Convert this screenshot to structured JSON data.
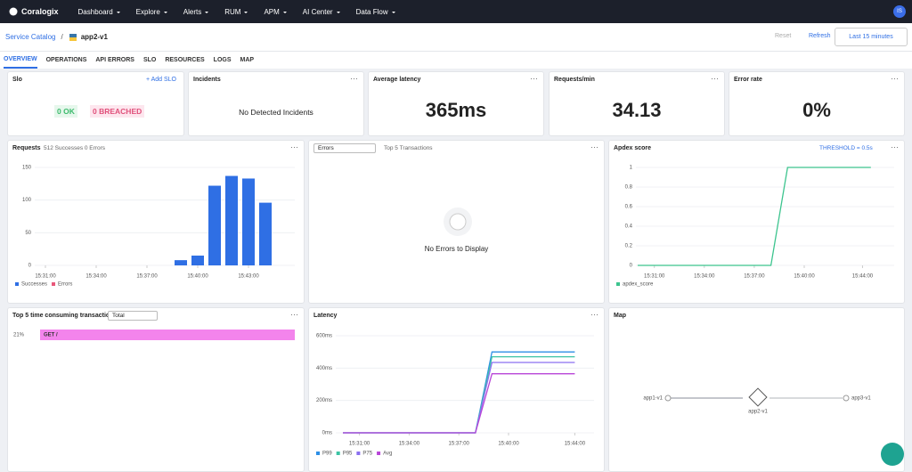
{
  "nav": {
    "brand": "Coralogix",
    "items": [
      "Dashboard",
      "Explore",
      "Alerts",
      "RUM",
      "APM",
      "AI Center",
      "Data Flow"
    ],
    "avatar": "IS"
  },
  "header": {
    "breadcrumb": "Service Catalog",
    "separator": "/",
    "service": "app2-v1",
    "reset": "Reset",
    "refresh": "Refresh",
    "time_range": "Last 15 minutes"
  },
  "tabs": [
    "OVERVIEW",
    "OPERATIONS",
    "API ERRORS",
    "SLO",
    "RESOURCES",
    "LOGS",
    "MAP"
  ],
  "slo": {
    "title": "Slo",
    "add": "+ Add SLO",
    "ok": "0 OK",
    "breached": "0 BREACHED"
  },
  "incidents": {
    "title": "Incidents",
    "message": "No Detected Incidents"
  },
  "latency_card": {
    "title": "Average latency",
    "value": "365ms"
  },
  "requests_card": {
    "title": "Requests/min",
    "value": "34.13"
  },
  "error_card": {
    "title": "Error rate",
    "value": "0%"
  },
  "requests_chart": {
    "type": "bar",
    "title": "Requests",
    "subtitle": "512 Successes 0 Errors",
    "categories": [
      null,
      null,
      null,
      null,
      null,
      null,
      null,
      null,
      null,
      null,
      null,
      null,
      null,
      null
    ],
    "series": [
      {
        "name": "Successes",
        "color": "#2f6fe4",
        "values": [
          0,
          0,
          0,
          0,
          0,
          0,
          0,
          0,
          8,
          15,
          122,
          137,
          133,
          96
        ]
      },
      {
        "name": "Errors",
        "color": "#e8577a",
        "values": [
          0,
          0,
          0,
          0,
          0,
          0,
          0,
          0,
          0,
          0,
          0,
          0,
          0,
          0
        ]
      }
    ],
    "ylim": [
      0,
      150
    ],
    "yticks": [
      0,
      50,
      100,
      150
    ],
    "xticks": [
      {
        "value": 0,
        "label": "15:31:00"
      },
      {
        "value": 3,
        "label": "15:34:00"
      },
      {
        "value": 6,
        "label": "15:37:00"
      },
      {
        "value": 9,
        "label": "15:40:00"
      },
      {
        "value": 12,
        "label": "15:43:00"
      }
    ],
    "grid": true
  },
  "errors_panel": {
    "select": "Errors",
    "title": "Top 5 Transactions",
    "message": "No Errors to Display"
  },
  "apdex_chart": {
    "type": "line",
    "title": "Apdex score",
    "threshold": "THRESHOLD = 0.5s",
    "x": [
      0,
      1,
      2,
      3,
      4,
      5,
      6,
      7,
      8,
      9,
      10,
      11,
      12,
      13,
      14
    ],
    "series": [
      {
        "name": "apdex_score",
        "color": "#3cc48e",
        "values": [
          0,
          0,
          0,
          0,
          0,
          0,
          0,
          0,
          0,
          1,
          1,
          1,
          1,
          1,
          1
        ]
      }
    ],
    "xlim": [
      0,
      14
    ],
    "ylim": [
      0,
      1
    ],
    "yticks": [
      0,
      0.2,
      0.4,
      0.6,
      0.8,
      1
    ],
    "xticks": [
      {
        "value": 1,
        "label": "15:31:00"
      },
      {
        "value": 4,
        "label": "15:34:00"
      },
      {
        "value": 7,
        "label": "15:37:00"
      },
      {
        "value": 10,
        "label": "15:40:00"
      },
      {
        "value": 13.5,
        "label": "15:44:00"
      }
    ],
    "grid": true
  },
  "transactions": {
    "type": "hbar",
    "title": "Top 5 time consuming transactions",
    "select": "Total",
    "categories": [
      "GET /"
    ],
    "values": [
      21
    ],
    "value_labels": [
      "21%"
    ],
    "color": "#f384ec"
  },
  "latency_chart": {
    "type": "line",
    "title": "Latency",
    "x": [
      0,
      1,
      2,
      3,
      4,
      5,
      6,
      7,
      8,
      9,
      10,
      11,
      12,
      13,
      14
    ],
    "series": [
      {
        "name": "P99",
        "color": "#2d8fe6",
        "values": [
          0,
          0,
          0,
          0,
          0,
          0,
          0,
          0,
          0,
          500,
          500,
          500,
          500,
          500,
          500
        ]
      },
      {
        "name": "P95",
        "color": "#3cc4a4",
        "values": [
          0,
          0,
          0,
          0,
          0,
          0,
          0,
          0,
          0,
          470,
          470,
          470,
          470,
          470,
          470
        ]
      },
      {
        "name": "P75",
        "color": "#8a6ff0",
        "values": [
          0,
          0,
          0,
          0,
          0,
          0,
          0,
          0,
          0,
          435,
          435,
          435,
          435,
          435,
          435
        ]
      },
      {
        "name": "Avg",
        "color": "#b845d8",
        "values": [
          0,
          0,
          0,
          0,
          0,
          0,
          0,
          0,
          0,
          365,
          365,
          365,
          365,
          365,
          365
        ]
      }
    ],
    "xlim": [
      0,
      14
    ],
    "ylim": [
      0,
      600
    ],
    "yticks": [
      {
        "value": 0,
        "label": "0ms"
      },
      {
        "value": 200,
        "label": "200ms"
      },
      {
        "value": 400,
        "label": "400ms"
      },
      {
        "value": 600,
        "label": "600ms"
      }
    ],
    "xticks": [
      {
        "value": 1,
        "label": "15:31:00"
      },
      {
        "value": 4,
        "label": "15:34:00"
      },
      {
        "value": 7,
        "label": "15:37:00"
      },
      {
        "value": 10,
        "label": "15:40:00"
      },
      {
        "value": 14,
        "label": "15:44:00"
      }
    ],
    "grid": true
  },
  "map": {
    "title": "Map",
    "nodes": [
      "app1-v1",
      "app2-v1",
      "app3-v1"
    ]
  }
}
